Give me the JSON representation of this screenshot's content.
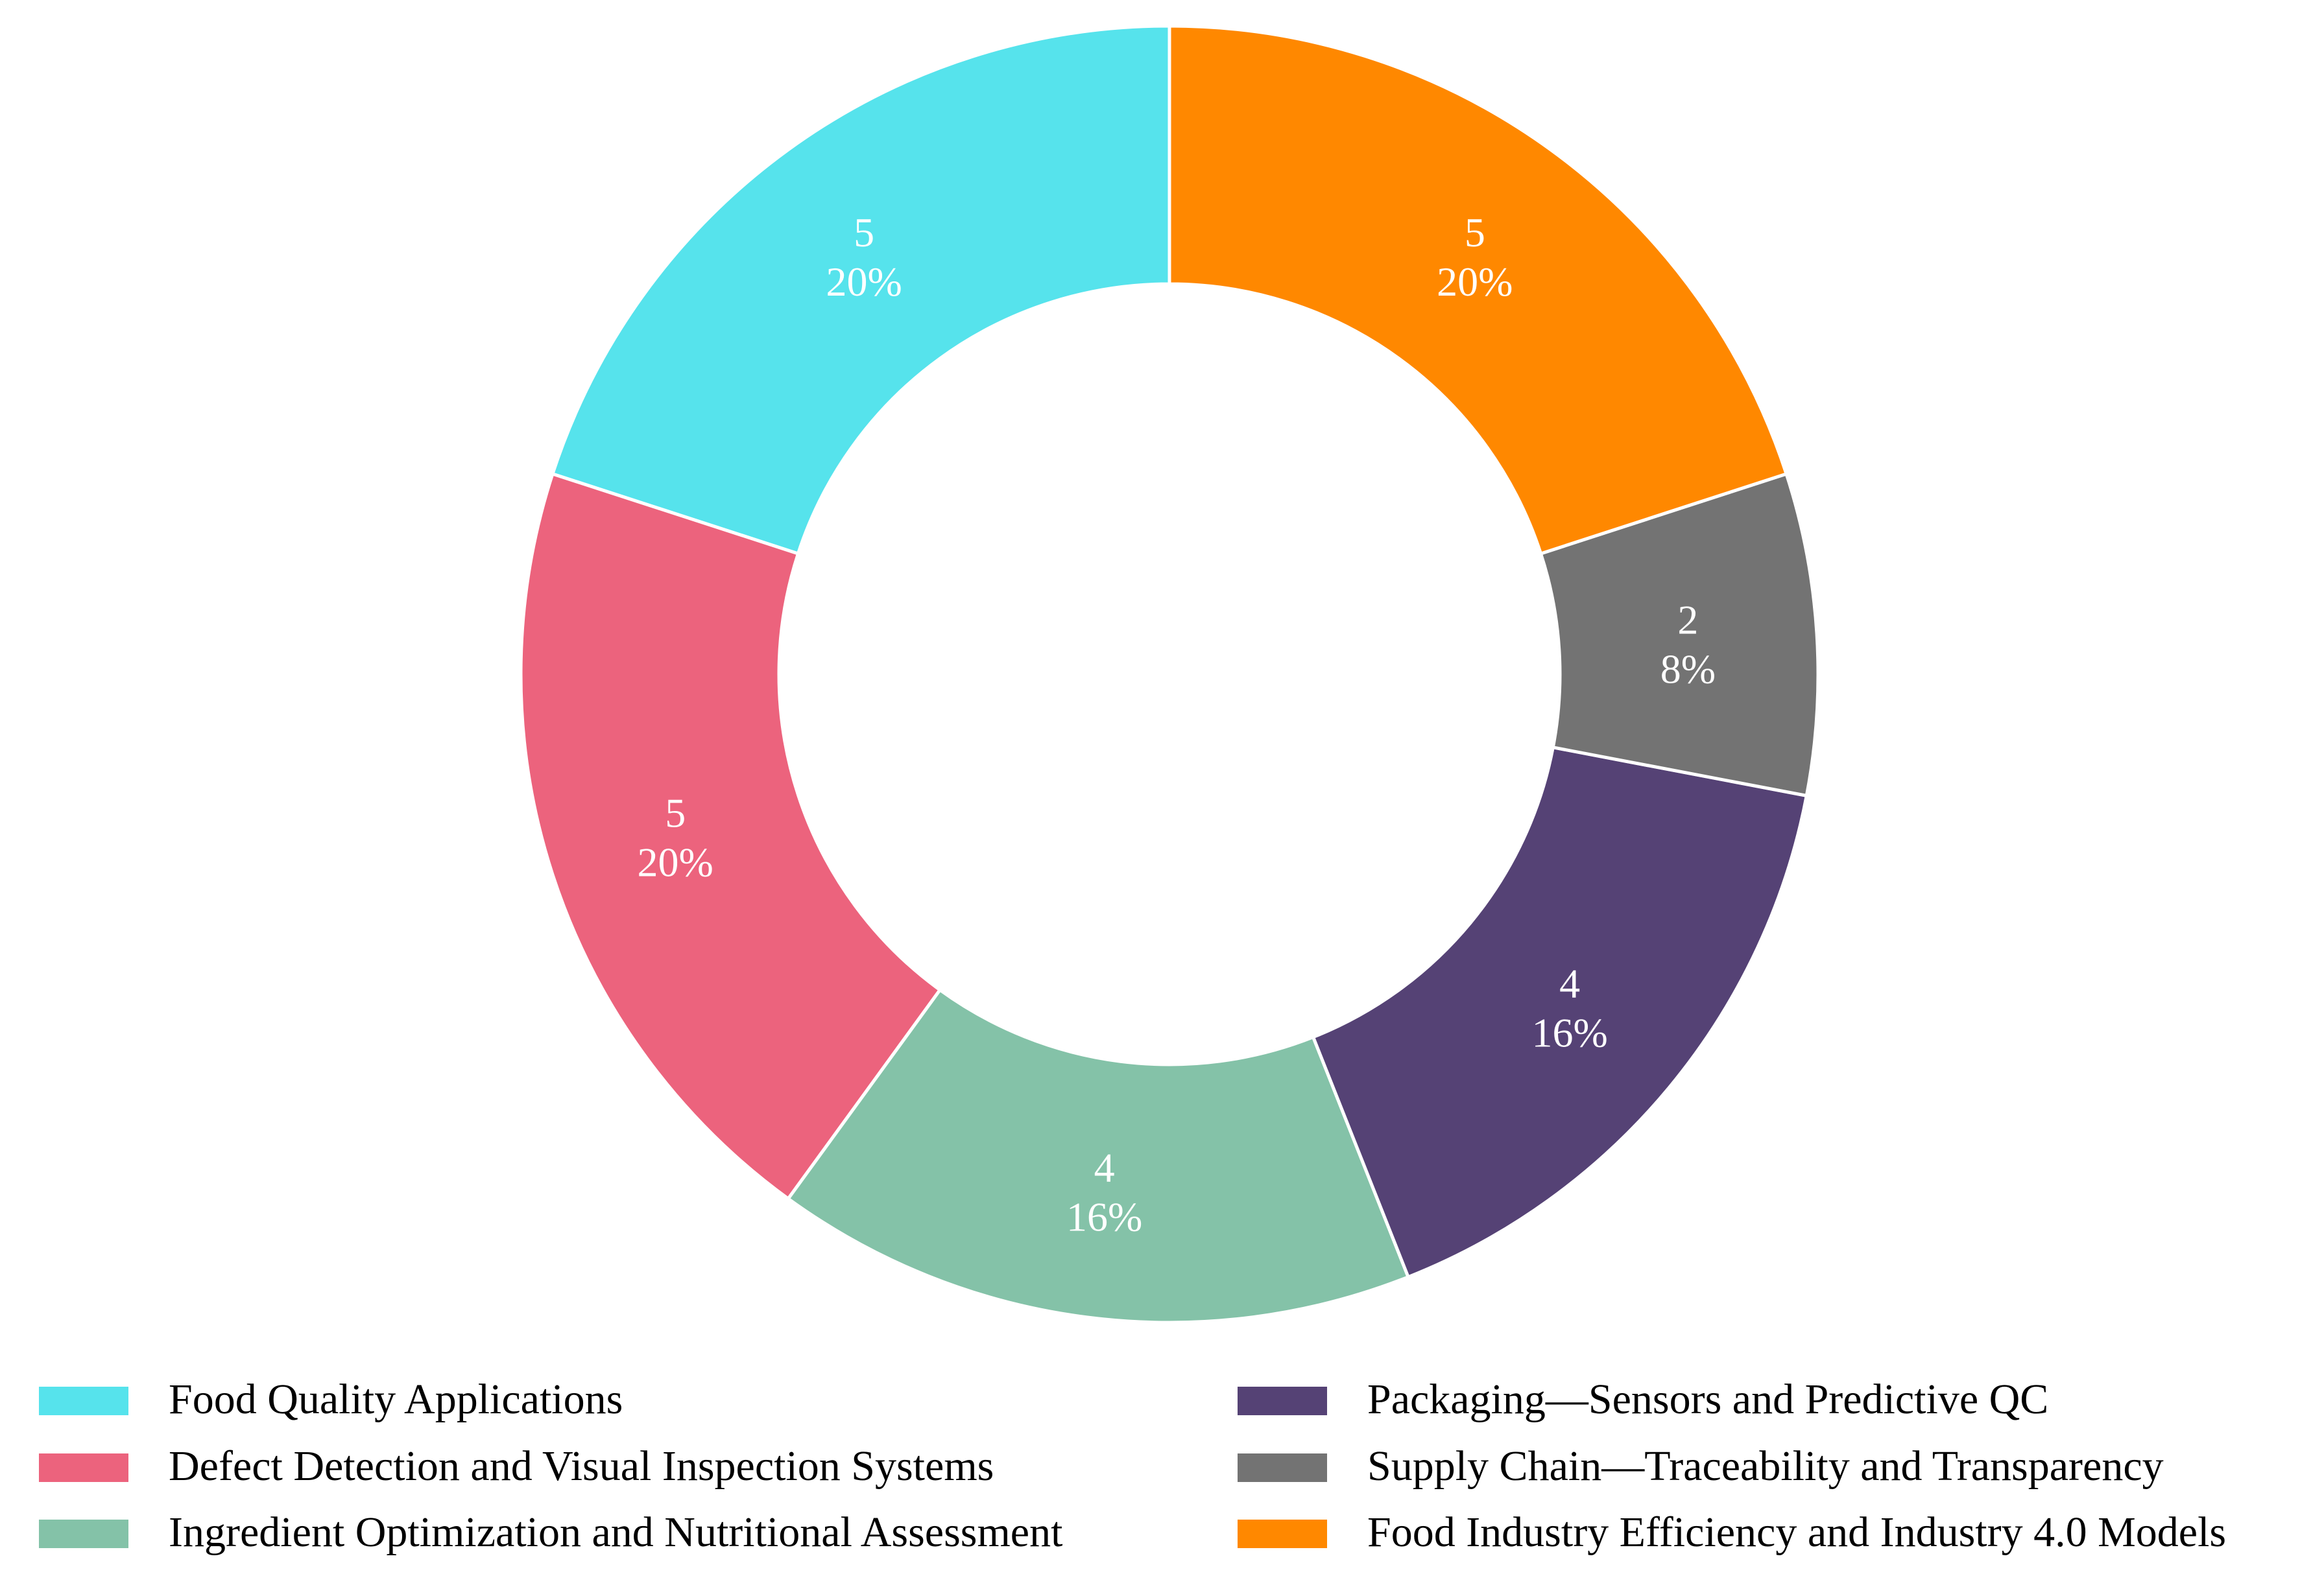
{
  "chart_data": {
    "type": "pie",
    "donut": true,
    "start_angle_deg": 90,
    "direction": "counterclockwise",
    "legend_position": "bottom",
    "categories": [
      "Food Quality Applications",
      "Defect Detection and Visual Inspection Systems",
      "Ingredient Optimization and Nutritional Assessment",
      "Packaging—Sensors and Predictive QC",
      "Supply Chain—Traceability and Transparency",
      "Food Industry Efficiency and Industry 4.0 Models"
    ],
    "values": [
      5,
      5,
      4,
      4,
      2,
      5
    ],
    "percent_labels": [
      "20%",
      "20%",
      "16%",
      "16%",
      "8%",
      "20%"
    ],
    "colors": [
      "#56e3ec",
      "#ec637d",
      "#84c2a8",
      "#554275",
      "#737373",
      "#ff8800"
    ]
  }
}
